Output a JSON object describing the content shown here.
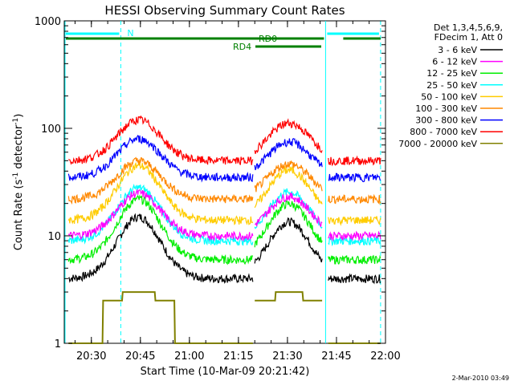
{
  "chart_data": {
    "type": "line",
    "title": "HESSI Observing Summary Count Rates",
    "xlabel": "Start Time (10-Mar-09 20:21:42)",
    "ylabel_main": "Count Rate (s",
    "ylabel_sup1": "-1",
    "ylabel_mid": " detector",
    "ylabel_sup2": "-1",
    "ylabel_end": ")",
    "y_scale": "log",
    "ylim": [
      1,
      1000
    ],
    "xlim": [
      "20:21:42",
      "22:00:00"
    ],
    "x_ticks": [
      "20:30",
      "20:45",
      "21:00",
      "21:15",
      "21:30",
      "21:45",
      "22:00"
    ],
    "y_ticks": [
      "1",
      "10",
      "100",
      "1000"
    ],
    "legend_header": [
      "Det 1,3,4,5,6,9,",
      "FDecim 1, Att 0"
    ],
    "legend_position": "right, outside plot",
    "series": [
      {
        "name": "3 - 6 keV",
        "color": "#000000",
        "peak": 15,
        "base": 4
      },
      {
        "name": "6 - 12 keV",
        "color": "#ff00ff",
        "peak": 25,
        "base": 10
      },
      {
        "name": "12 - 25 keV",
        "color": "#00ee00",
        "peak": 22,
        "base": 6
      },
      {
        "name": "25 - 50 keV",
        "color": "#00ffff",
        "peak": 28,
        "base": 9
      },
      {
        "name": "50 - 100 keV",
        "color": "#ffcc00",
        "peak": 45,
        "base": 14
      },
      {
        "name": "100 - 300 keV",
        "color": "#ff8800",
        "peak": 50,
        "base": 22
      },
      {
        "name": "300 - 800 keV",
        "color": "#0000ff",
        "peak": 80,
        "base": 35
      },
      {
        "name": "800 - 7000 keV",
        "color": "#ff0000",
        "peak": 120,
        "base": 50
      },
      {
        "name": "7000 - 20000 keV",
        "color": "#808000",
        "peak": 3.5,
        "base": 1
      }
    ],
    "annotations": [
      {
        "label": "N",
        "color": "#00ffff"
      },
      {
        "label": "RD0",
        "color": "#008000"
      },
      {
        "label": "RD4",
        "color": "#008000"
      }
    ],
    "footer": "2-Mar-2010 03:49"
  }
}
